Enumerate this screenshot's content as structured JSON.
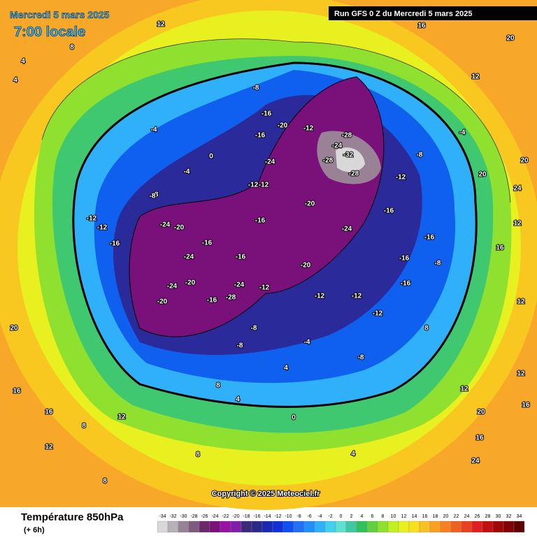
{
  "header": {
    "date": "Mercredi 5 mars 2025",
    "time": "7:00 locale",
    "run": "Run GFS 0 Z du Mercredi 5 mars 2025"
  },
  "copyright": "Copyright © 2025 Meteociel.fr",
  "legend": {
    "title": "Température 850hPa",
    "subtitle": "(+ 6h)",
    "ticks": [
      -34,
      -32,
      -30,
      -28,
      -26,
      -24,
      -22,
      -20,
      -18,
      -16,
      -14,
      -12,
      -10,
      -8,
      -6,
      -4,
      -2,
      0,
      2,
      4,
      6,
      8,
      10,
      12,
      14,
      16,
      18,
      20,
      22,
      24,
      26,
      28,
      30,
      32,
      34
    ],
    "colors": [
      "#d8d8d8",
      "#b8b0b8",
      "#9a8296",
      "#7e5a7e",
      "#6a2a6a",
      "#7a107a",
      "#9a10a0",
      "#8020a8",
      "#3a2a7a",
      "#2a2a8a",
      "#1a2ab0",
      "#1030d8",
      "#1050f0",
      "#2070f8",
      "#2090f8",
      "#30b0f8",
      "#40d0f0",
      "#60e0d0",
      "#40c8a0",
      "#30c060",
      "#60d040",
      "#90e030",
      "#c0f020",
      "#e8f020",
      "#f8e020",
      "#f8c020",
      "#f8a020",
      "#f88020",
      "#f06020",
      "#e84020",
      "#e02020",
      "#c01010",
      "#a00808",
      "#800404",
      "#600000"
    ]
  },
  "map": {
    "labels": [
      -8,
      -16,
      -20,
      -16,
      -12,
      -28,
      -24,
      -32,
      -28,
      -28,
      -24,
      -12,
      -12,
      -8,
      -16,
      -20,
      -24,
      -16,
      -20,
      -12,
      -12,
      -12,
      -16,
      -8,
      -16,
      -16,
      -12,
      -8,
      -4,
      -4,
      -8,
      -4,
      0,
      -12,
      -12,
      -16,
      -24,
      -20,
      -16,
      -24,
      -20,
      -24,
      -20,
      -16,
      -28,
      -24,
      -16,
      -12,
      -8,
      -8,
      -4,
      -8,
      4,
      4,
      8,
      0,
      4,
      8,
      12,
      16,
      12,
      16,
      20,
      20,
      24,
      20,
      12,
      8,
      12,
      16,
      20,
      12,
      16,
      12,
      8,
      4,
      4,
      8,
      12,
      16,
      20,
      24,
      8,
      12,
      16
    ]
  }
}
